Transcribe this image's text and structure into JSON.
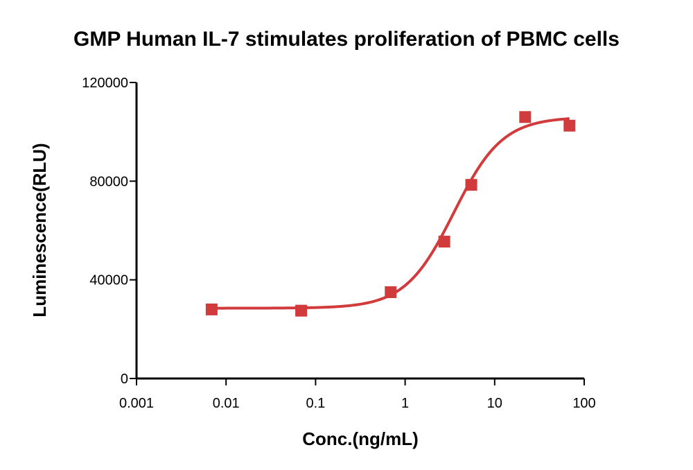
{
  "chart_data": {
    "type": "scatter",
    "title": "GMP Human IL-7 stimulates proliferation of PBMC cells",
    "xlabel": "Conc.(ng/mL)",
    "ylabel": "Luminescence(RLU)",
    "x_scale": "log",
    "xlim": [
      0.001,
      100
    ],
    "ylim": [
      0,
      120000
    ],
    "x_ticks": [
      0.001,
      0.01,
      0.1,
      1,
      10,
      100
    ],
    "x_tick_labels": [
      "0.001",
      "0.01",
      "0.1",
      "1",
      "10",
      "100"
    ],
    "y_ticks": [
      0,
      40000,
      80000,
      120000
    ],
    "y_tick_labels": [
      "0",
      "40000",
      "80000",
      "120000"
    ],
    "grid": false,
    "series": [
      {
        "marker": "square",
        "color": "#d13b3b",
        "x": [
          0.0069,
          0.069,
          0.69,
          2.74,
          5.48,
          21.9,
          68.5
        ],
        "y": [
          28000,
          27500,
          35000,
          55500,
          78500,
          106000,
          102500
        ]
      }
    ],
    "fit_curve": {
      "model": "4PL",
      "color": "#d13b3b",
      "bottom": 28500,
      "top": 106000,
      "ec50": 3.5,
      "hill": 1.6
    }
  }
}
